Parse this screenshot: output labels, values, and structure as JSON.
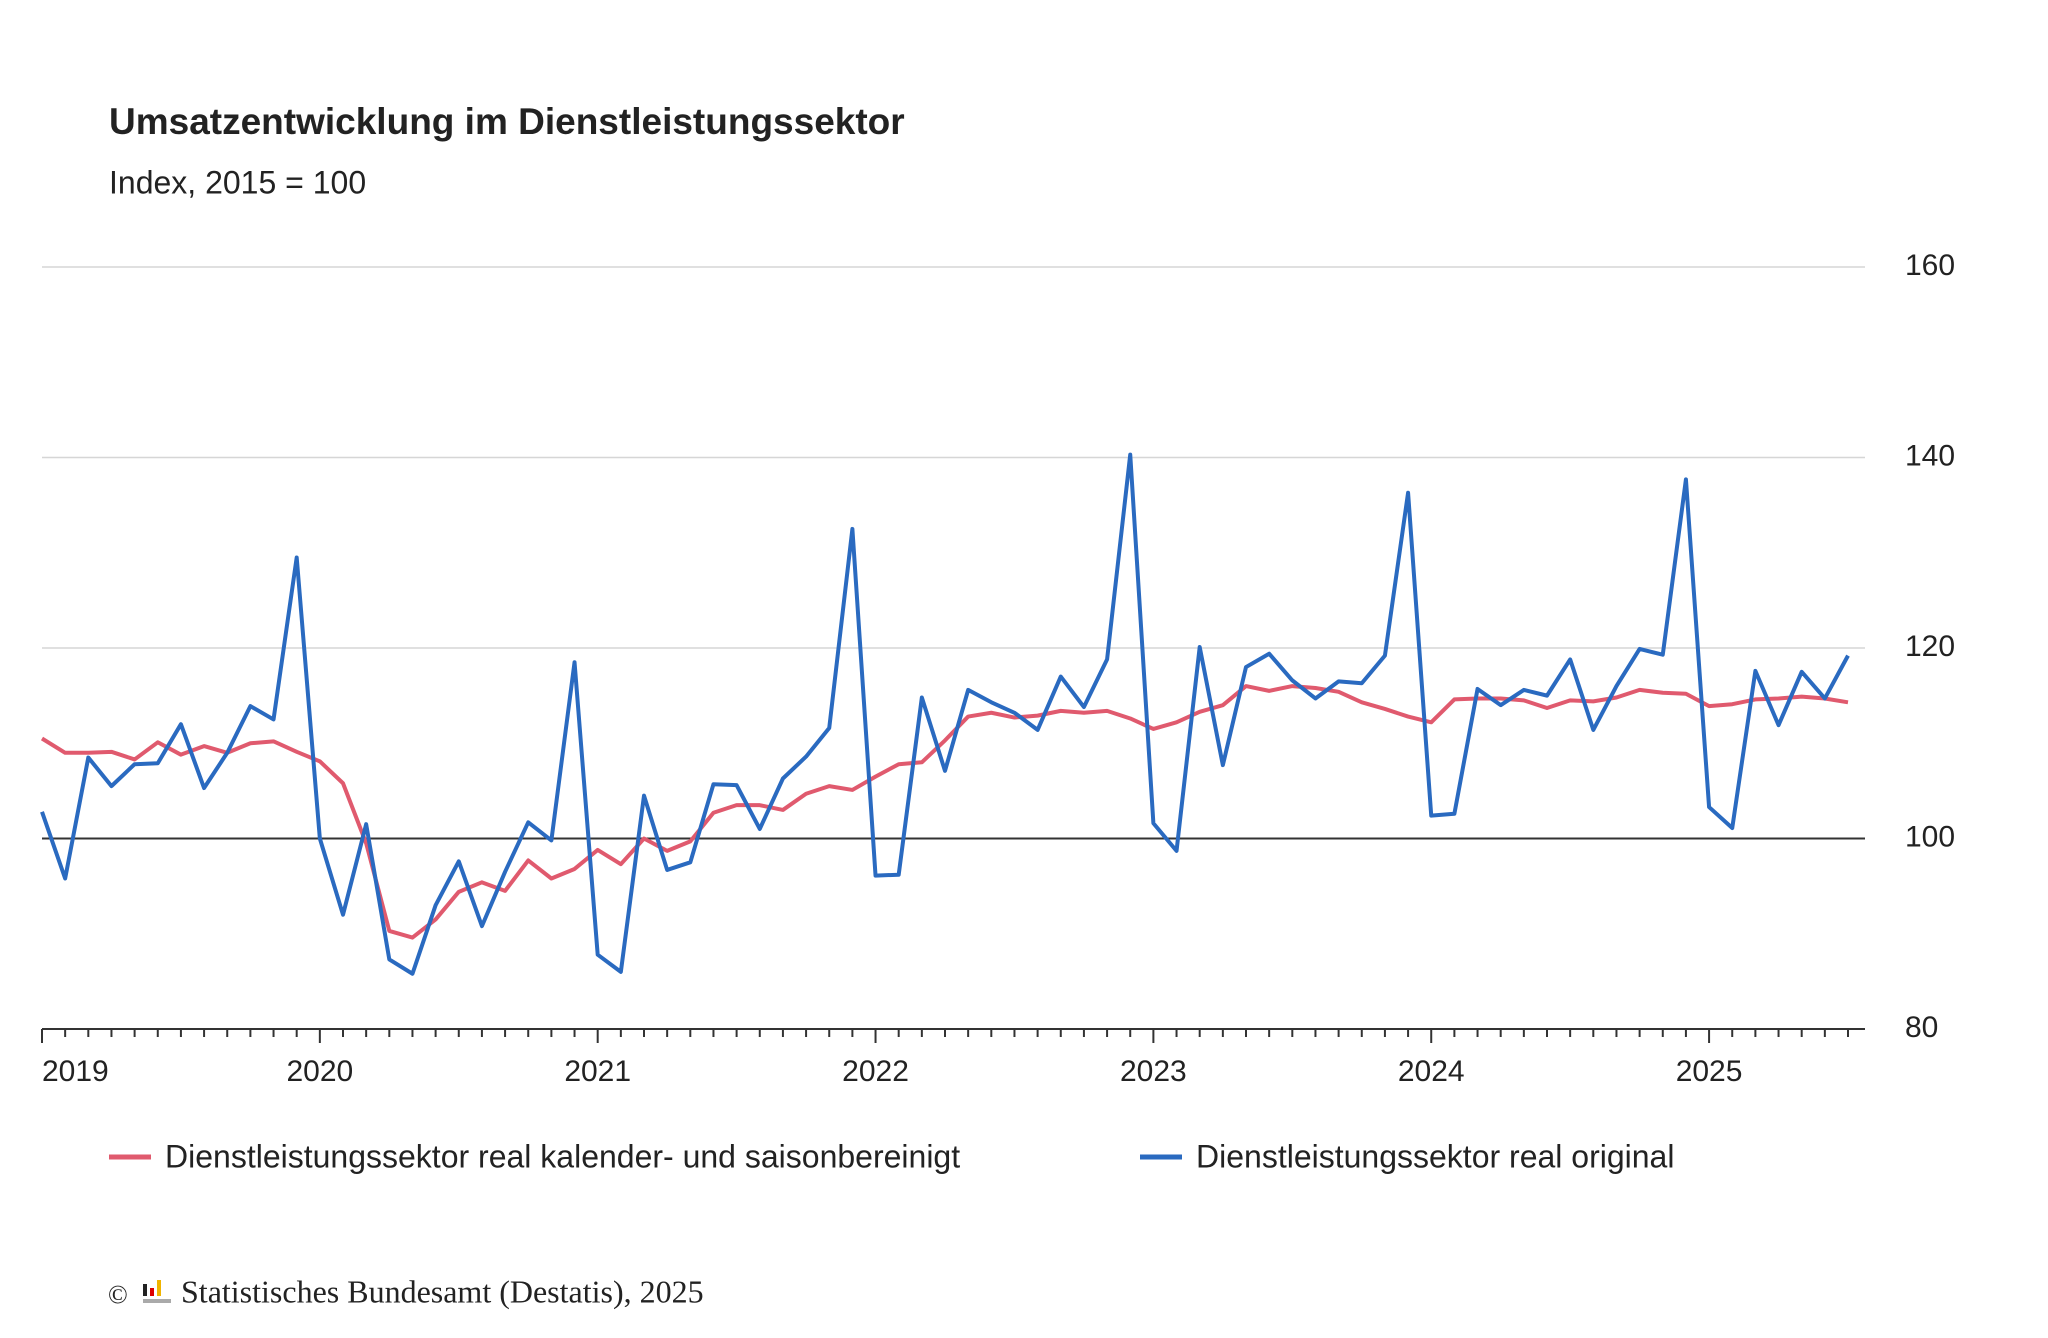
{
  "chart_data": {
    "type": "line",
    "title": "Umsatzentwicklung im Dienstleistungssektor",
    "subtitle": "Index, 2015 = 100",
    "categories": [
      "2019",
      null,
      null,
      null,
      null,
      null,
      null,
      null,
      null,
      null,
      null,
      null,
      "2020",
      null,
      null,
      null,
      null,
      null,
      null,
      null,
      null,
      null,
      null,
      null,
      "2021",
      null,
      null,
      null,
      null,
      null,
      null,
      null,
      null,
      null,
      null,
      null,
      "2022",
      null,
      null,
      null,
      null,
      null,
      null,
      null,
      null,
      null,
      null,
      null,
      "2023",
      null,
      null,
      null,
      null,
      null,
      null,
      null,
      null,
      null,
      null,
      null,
      "2024",
      null,
      null,
      null,
      null,
      null,
      null,
      null,
      null,
      null,
      null,
      null,
      "2025",
      null,
      null,
      null,
      null,
      null,
      null
    ],
    "series": [
      {
        "name": "Dienstleistungssektor real kalender- und saisonbereinigt",
        "color": "#e05a6e",
        "values": [
          110.5,
          109,
          109,
          109.1,
          108.3,
          110.1,
          108.8,
          109.7,
          109,
          110,
          110.2,
          109.1,
          108.1,
          105.8,
          99.5,
          90.3,
          89.6,
          91.5,
          94.4,
          95.4,
          94.5,
          97.7,
          95.8,
          96.8,
          98.8,
          97.3,
          100,
          98.7,
          99.7,
          102.7,
          103.5,
          103.5,
          103,
          104.7,
          105.5,
          105.1,
          106.5,
          107.8,
          108,
          110.3,
          112.8,
          113.2,
          112.7,
          112.9,
          113.4,
          113.2,
          113.4,
          112.6,
          111.5,
          112.2,
          113.3,
          114,
          116,
          115.5,
          116,
          115.8,
          115.4,
          114.3,
          113.6,
          112.8,
          112.2,
          114.6,
          114.7,
          114.7,
          114.5,
          113.7,
          114.5,
          114.4,
          114.8,
          115.6,
          115.3,
          115.2,
          113.9,
          114.1,
          114.6,
          114.7,
          114.9,
          114.7,
          114.3
        ]
      },
      {
        "name": "Dienstleistungssektor real original",
        "color": "#2a6ac0",
        "values": [
          102.8,
          95.8,
          108.5,
          105.5,
          107.8,
          107.9,
          112,
          105.3,
          109,
          113.9,
          112.5,
          129.5,
          100,
          92,
          101.5,
          87.3,
          85.8,
          93,
          97.6,
          90.8,
          96.5,
          101.7,
          99.8,
          118.5,
          87.8,
          86,
          104.5,
          96.7,
          97.5,
          105.7,
          105.6,
          101,
          106.3,
          108.6,
          111.6,
          132.5,
          96.1,
          96.2,
          114.8,
          107.1,
          115.6,
          114.3,
          113.2,
          111.4,
          117,
          113.8,
          118.8,
          140.3,
          101.6,
          98.7,
          120.1,
          107.7,
          118,
          119.4,
          116.6,
          114.7,
          116.5,
          116.3,
          119.2,
          136.3,
          102.4,
          102.6,
          115.7,
          114,
          115.6,
          115,
          118.8,
          111.4,
          116,
          119.9,
          119.3,
          137.7,
          103.3,
          101.1,
          117.6,
          111.9,
          117.5,
          114.7,
          119.2
        ]
      }
    ],
    "ylim": [
      80,
      160
    ],
    "yticks": [
      80,
      100,
      120,
      140,
      160
    ],
    "baseline": 100,
    "grid": true
  },
  "footer": "Statistisches Bundesamt (Destatis), 2025"
}
